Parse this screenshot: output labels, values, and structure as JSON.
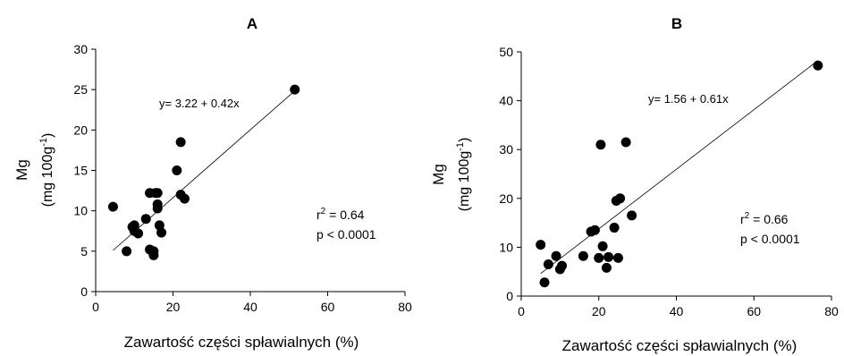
{
  "chart_data": [
    {
      "type": "scatter",
      "panel_label": "A",
      "xlabel": "Zawartość części spławialnych (%)",
      "ylabel_main": "Mg",
      "ylabel_unit_pre": "(mg 100g",
      "ylabel_unit_sup": "-1",
      "ylabel_unit_post": ")",
      "xlim": [
        0,
        80
      ],
      "ylim": [
        0,
        30
      ],
      "xticks": [
        0,
        20,
        40,
        60,
        80
      ],
      "yticks": [
        0,
        5,
        10,
        15,
        20,
        25,
        30
      ],
      "x": [
        4.5,
        8,
        9.5,
        10,
        10,
        11,
        13,
        14,
        14,
        15,
        15,
        15.5,
        16,
        16,
        16,
        16.5,
        17,
        21,
        22,
        22,
        23,
        51.5
      ],
      "y": [
        10.5,
        5,
        8,
        7.5,
        8.2,
        7.2,
        9,
        12.2,
        5.2,
        5,
        4.5,
        12.2,
        10.3,
        10.8,
        12.2,
        8.2,
        7.3,
        15,
        18.5,
        12,
        11.5,
        25
      ],
      "fit": {
        "intercept": 3.22,
        "slope": 0.42,
        "x_range": [
          4.5,
          51.5
        ]
      },
      "equation": "y= 3.22 + 0.42x",
      "r2_label_pre": "r",
      "r2_label_sup": "2",
      "r2_label_post": " = 0.64",
      "p_label": "p < 0.0001"
    },
    {
      "type": "scatter",
      "panel_label": "B",
      "xlabel": "Zawartość części spławialnych (%)",
      "ylabel_main": "Mg",
      "ylabel_unit_pre": "(mg 100g",
      "ylabel_unit_sup": "-1",
      "ylabel_unit_post": ")",
      "xlim": [
        0,
        80
      ],
      "ylim": [
        0,
        50
      ],
      "xticks": [
        0,
        20,
        40,
        60,
        80
      ],
      "yticks": [
        0,
        10,
        20,
        30,
        40,
        50
      ],
      "x": [
        5,
        6,
        7,
        9,
        10,
        10.5,
        16,
        18,
        19,
        20,
        20.5,
        21,
        22,
        22.5,
        24,
        24.5,
        25,
        25.5,
        27,
        28.5,
        76.5
      ],
      "y": [
        10.5,
        2.8,
        6.5,
        8.2,
        5.5,
        6.2,
        8.2,
        13.2,
        13.5,
        7.8,
        31,
        10.2,
        5.8,
        8,
        14,
        19.5,
        7.8,
        20,
        31.5,
        16.5,
        47.2
      ],
      "fit": {
        "intercept": 1.56,
        "slope": 0.61,
        "x_range": [
          5,
          76.5
        ]
      },
      "equation": "y= 1.56 + 0.61x",
      "r2_label_pre": "r",
      "r2_label_sup": "2",
      "r2_label_post": " = 0.66",
      "p_label": "p < 0.0001"
    }
  ]
}
